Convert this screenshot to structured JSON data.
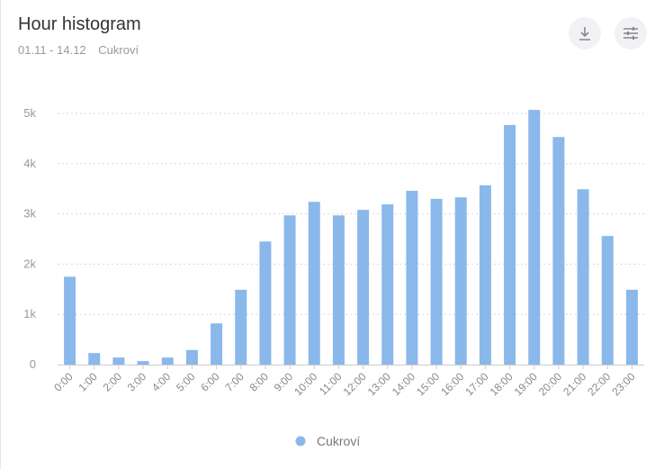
{
  "header": {
    "title": "Hour histogram",
    "date_range": "01.11 - 14.12",
    "filter": "Cukroví"
  },
  "toolbar": {
    "download_icon": "download-icon",
    "settings_icon": "sliders-icon"
  },
  "chart_data": {
    "type": "bar",
    "title": "",
    "xlabel": "",
    "ylabel": "",
    "ylim": [
      0,
      5000
    ],
    "yticks": [
      0,
      1000,
      2000,
      3000,
      4000,
      5000
    ],
    "ytick_labels": [
      "0",
      "1k",
      "2k",
      "3k",
      "4k",
      "5k"
    ],
    "grid": true,
    "legend": "bottom",
    "color": "#8ab8ea",
    "categories": [
      "0:00",
      "1:00",
      "2:00",
      "3:00",
      "4:00",
      "5:00",
      "6:00",
      "7:00",
      "8:00",
      "9:00",
      "10:00",
      "11:00",
      "12:00",
      "13:00",
      "14:00",
      "15:00",
      "16:00",
      "17:00",
      "18:00",
      "19:00",
      "20:00",
      "21:00",
      "22:00",
      "23:00"
    ],
    "series": [
      {
        "name": "Cukroví",
        "values": [
          1750,
          230,
          140,
          70,
          140,
          290,
          820,
          1490,
          2450,
          2970,
          3240,
          2970,
          3080,
          3190,
          3460,
          3300,
          3330,
          3570,
          4770,
          5070,
          4530,
          3490,
          2560,
          1490
        ]
      }
    ]
  }
}
